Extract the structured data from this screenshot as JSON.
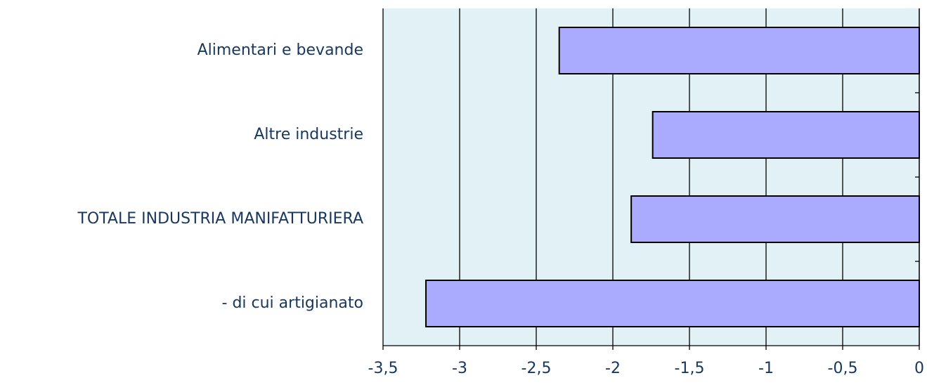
{
  "chart_data": {
    "type": "bar",
    "orientation": "horizontal",
    "categories": [
      "Alimentari e bevande",
      "Altre industrie",
      "TOTALE INDUSTRIA MANIFATTURIERA",
      "- di cui artigianato"
    ],
    "values": [
      -2.35,
      -1.74,
      -1.88,
      -3.22
    ],
    "color": "#aaaaff",
    "xlim": [
      -3.5,
      0
    ],
    "xticks": [
      {
        "value": -3.5,
        "label": "-3,5"
      },
      -3,
      {
        "value": -2.5,
        "label": "-2,5"
      },
      -2,
      {
        "value": -1.5,
        "label": "-1,5"
      },
      -1,
      {
        "value": -0.5,
        "label": "-0,5"
      },
      0
    ],
    "grid": true
  }
}
